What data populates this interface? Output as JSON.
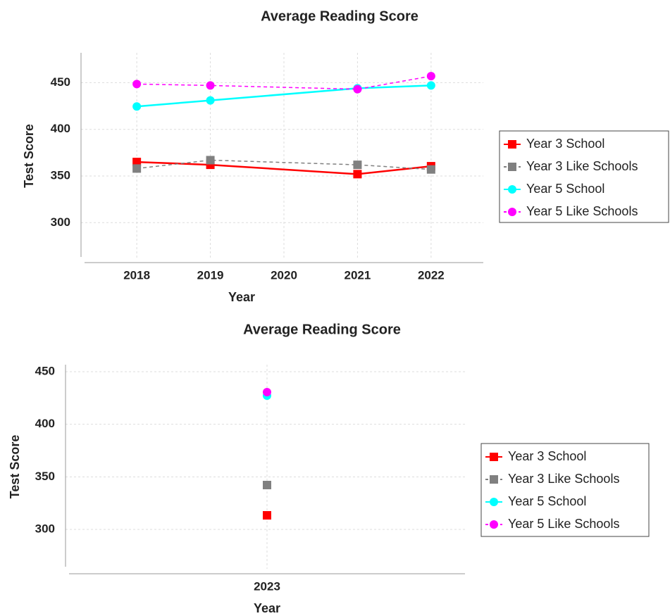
{
  "chart_data": [
    {
      "type": "line",
      "title": "Average Reading Score",
      "x_label": "Year",
      "y_label": "Test Score",
      "x": [
        2018,
        2019,
        2021,
        2022
      ],
      "xlim": [
        2017.29,
        2022.71
      ],
      "xticks": [
        2018,
        2019,
        2020,
        2021,
        2022
      ],
      "ylim": [
        261,
        482
      ],
      "yticks": [
        300,
        350,
        400,
        450
      ],
      "grid": true,
      "legend": "right",
      "series": [
        {
          "name": "Year 3 School",
          "color": "#ff0000",
          "marker": "square",
          "dashed": false,
          "values": [
            365,
            362,
            352,
            360.5
          ]
        },
        {
          "name": "Year 3 Like Schools",
          "color": "#808080",
          "marker": "square",
          "dashed": true,
          "values": [
            358,
            367,
            362,
            357
          ]
        },
        {
          "name": "Year 5 School",
          "color": "#00ffff",
          "marker": "circle",
          "dashed": false,
          "values": [
            424.5,
            431,
            444,
            447
          ]
        },
        {
          "name": "Year 5 Like Schools",
          "color": "#ff00ff",
          "marker": "circle",
          "dashed": true,
          "values": [
            448.5,
            447,
            443,
            457
          ]
        }
      ]
    },
    {
      "type": "line",
      "title": "Average Reading Score",
      "x_label": "Year",
      "y_label": "Test Score",
      "categories": [
        "2023"
      ],
      "ylim": [
        262.5,
        456.7
      ],
      "yticks": [
        300,
        350,
        400,
        450
      ],
      "grid": true,
      "legend": "right",
      "series": [
        {
          "name": "Year 3 School",
          "color": "#ff0000",
          "marker": "square",
          "dashed": false,
          "values": [
            313.4
          ]
        },
        {
          "name": "Year 3 Like Schools",
          "color": "#808080",
          "marker": "square",
          "dashed": true,
          "values": [
            342.2
          ]
        },
        {
          "name": "Year 5 School",
          "color": "#00ffff",
          "marker": "circle",
          "dashed": false,
          "values": [
            427.2
          ]
        },
        {
          "name": "Year 5 Like Schools",
          "color": "#ff00ff",
          "marker": "circle",
          "dashed": true,
          "values": [
            430.6
          ]
        }
      ]
    }
  ]
}
